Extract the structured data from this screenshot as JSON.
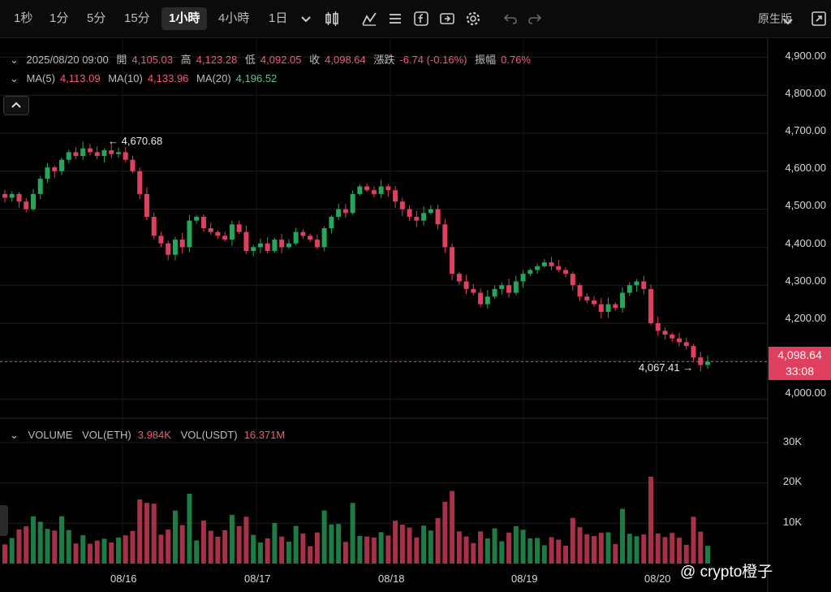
{
  "toolbar": {
    "timeframes": [
      "1秒",
      "1分",
      "5分",
      "15分",
      "1小時",
      "4小時",
      "1日"
    ],
    "active": "1小時",
    "source_label": "原生版"
  },
  "info": {
    "datetime": "2025/08/20 09:00",
    "open_label": "開",
    "open": "4,105.03",
    "high_label": "高",
    "high": "4,123.28",
    "low_label": "低",
    "low": "4,092.05",
    "close_label": "收",
    "close": "4,098.64",
    "change_label": "漲跌",
    "change": "-6.74 (-0.16%)",
    "amp_label": "振幅",
    "amp": "0.76%"
  },
  "ma": {
    "ma5_label": "MA(5)",
    "ma5": "4,113.09",
    "ma10_label": "MA(10)",
    "ma10": "4,133.96",
    "ma20_label": "MA(20)",
    "ma20": "4,196.52"
  },
  "volume": {
    "title": "VOLUME",
    "eth_label": "VOL(ETH)",
    "eth": "3.984K",
    "usdt_label": "VOL(USDT)",
    "usdt": "16.371M"
  },
  "price_axis": [
    "4,900.00",
    "4,800.00",
    "4,700.00",
    "4,600.00",
    "4,500.00",
    "4,400.00",
    "4,300.00",
    "4,200.00",
    "4,000.00"
  ],
  "volume_axis": [
    "30K",
    "20K",
    "10K"
  ],
  "dates": [
    "08/16",
    "08/17",
    "08/18",
    "08/19",
    "08/20"
  ],
  "current": {
    "price": "4,098.64",
    "countdown": "33:08"
  },
  "high_marker": "4,670.68",
  "low_marker": "4,067.41",
  "watermark": "@ crypto橙子",
  "colors": {
    "up": "#26a65b",
    "down": "#e0405f",
    "background": "#000000"
  },
  "chart_data": {
    "type": "candlestick",
    "interval": "1h",
    "ylim": [
      3950,
      4950
    ],
    "volume_ylim": [
      0,
      35000
    ],
    "closes": [
      4530,
      4540,
      4520,
      4500,
      4540,
      4580,
      4610,
      4600,
      4630,
      4650,
      4640,
      4660,
      4650,
      4640,
      4655,
      4645,
      4650,
      4630,
      4600,
      4540,
      4480,
      4430,
      4410,
      4380,
      4420,
      4400,
      4470,
      4480,
      4450,
      4440,
      4430,
      4420,
      4460,
      4440,
      4390,
      4400,
      4410,
      4390,
      4420,
      4400,
      4410,
      4440,
      4430,
      4420,
      4400,
      4450,
      4480,
      4500,
      4490,
      4540,
      4560,
      4550,
      4540,
      4560,
      4550,
      4520,
      4500,
      4480,
      4470,
      4490,
      4500,
      4460,
      4400,
      4330,
      4310,
      4290,
      4280,
      4250,
      4270,
      4290,
      4300,
      4280,
      4310,
      4330,
      4340,
      4350,
      4360,
      4350,
      4340,
      4330,
      4300,
      4270,
      4260,
      4250,
      4230,
      4250,
      4240,
      4280,
      4300,
      4310,
      4290,
      4200,
      4180,
      4170,
      4160,
      4150,
      4140,
      4110,
      4090,
      4098.64
    ]
  }
}
